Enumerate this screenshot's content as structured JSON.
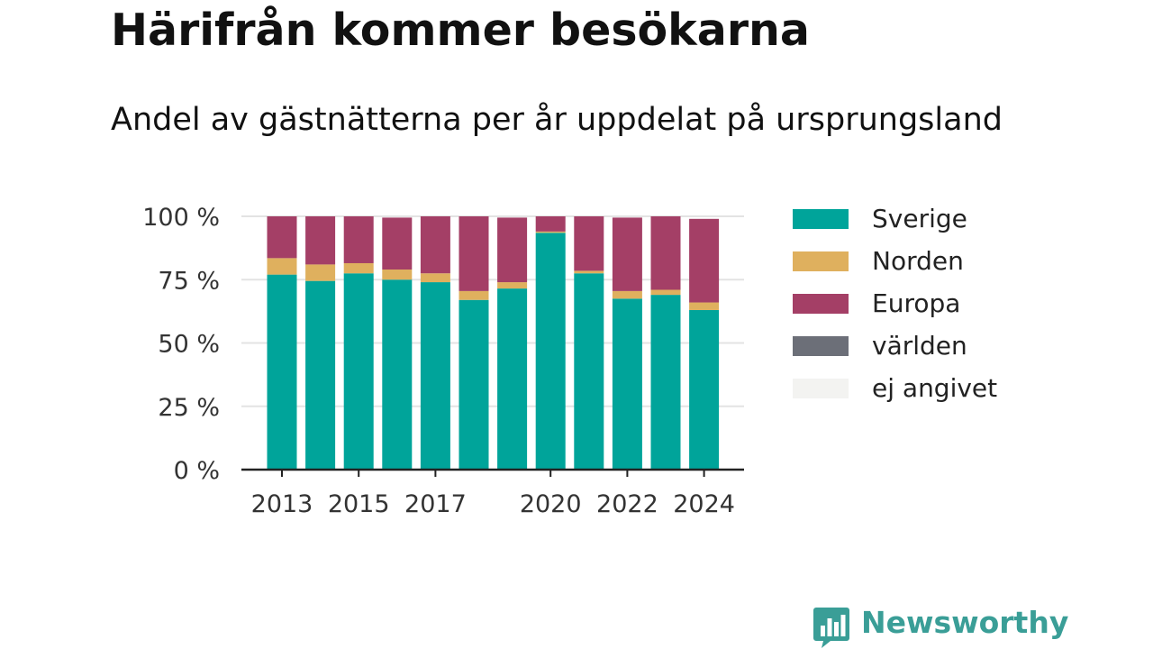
{
  "title": "Härifrån kommer besökarna",
  "subtitle": "Andel av gästnätterna per år uppdelat på ursprungsland",
  "brand": {
    "name": "Newsworthy",
    "icon": "bar-chart-speech-bubble-icon",
    "color": "#3a9e97"
  },
  "chart_data": {
    "type": "bar",
    "stacked": true,
    "categories": [
      "2013",
      "2014",
      "2015",
      "2016",
      "2017",
      "2018",
      "2019",
      "2020",
      "2021",
      "2022",
      "2023",
      "2024"
    ],
    "x_tick_labels": [
      "2013",
      "",
      "2015",
      "",
      "2017",
      "",
      "",
      "2020",
      "",
      "2022",
      "",
      "2024"
    ],
    "y_ticks": [
      0,
      25,
      50,
      75,
      100
    ],
    "y_tick_labels": [
      "0 %",
      "25 %",
      "50 %",
      "75 %",
      "100 %"
    ],
    "ylim": [
      0,
      100
    ],
    "grid": true,
    "legend_position": "right",
    "series": [
      {
        "name": "Sverige",
        "color": "#00a49a",
        "values": [
          77,
          74.5,
          77.5,
          75,
          74,
          67,
          71.5,
          93.5,
          77.5,
          67.5,
          69,
          63
        ]
      },
      {
        "name": "Norden",
        "color": "#dfb05e",
        "values": [
          6.5,
          6.5,
          4,
          4,
          3.5,
          3.5,
          2.5,
          0.5,
          1,
          3,
          2,
          3
        ]
      },
      {
        "name": "Europa",
        "color": "#a43f66",
        "values": [
          16.5,
          19,
          18.5,
          20.5,
          22.5,
          29.5,
          25.5,
          6,
          21.5,
          29,
          29,
          33
        ]
      },
      {
        "name": "världen",
        "color": "#6c6f78",
        "values": [
          0,
          0,
          0,
          0,
          0,
          0,
          0,
          0,
          0,
          0,
          0,
          0
        ]
      },
      {
        "name": "ej angivet",
        "color": "#f3f3f1",
        "values": [
          0,
          0,
          0,
          0,
          0,
          0,
          0,
          0,
          0,
          0,
          0,
          0
        ]
      }
    ]
  }
}
